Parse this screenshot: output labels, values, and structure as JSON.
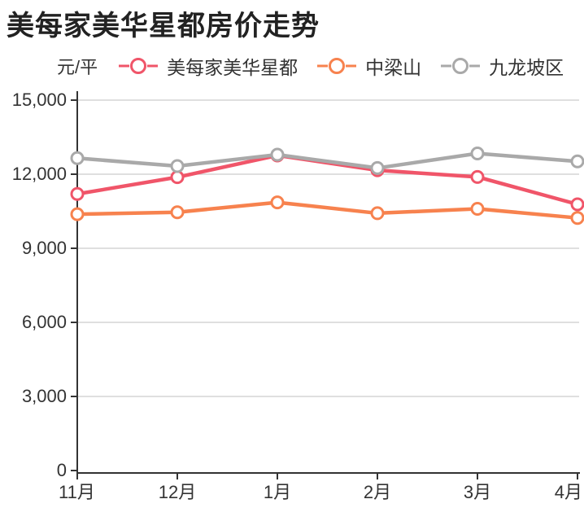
{
  "title": "美每家美华星都房价走势",
  "unit_label": "元/平",
  "colors": {
    "series_pink": "#f05569",
    "series_orange": "#f7824e",
    "series_gray": "#a9a9a9",
    "axis": "#333333",
    "grid": "#cccccc",
    "text": "#333333",
    "title_text": "#222222",
    "marker_fill": "#ffffff",
    "background": "#ffffff"
  },
  "chart_data": {
    "type": "line",
    "title": "美每家美华星都房价走势",
    "ylabel": "元/平",
    "categories": [
      "11月",
      "12月",
      "1月",
      "2月",
      "3月",
      "4月"
    ],
    "series": [
      {
        "name": "美每家美华星都",
        "color": "#f05569",
        "values": [
          11200,
          11880,
          12760,
          12160,
          11890,
          10780
        ]
      },
      {
        "name": "中梁山",
        "color": "#f7824e",
        "values": [
          10380,
          10460,
          10860,
          10420,
          10600,
          10230
        ]
      },
      {
        "name": "九龙坡区",
        "color": "#a9a9a9",
        "values": [
          12650,
          12330,
          12790,
          12250,
          12840,
          12520
        ]
      }
    ],
    "ylim": [
      0,
      15000
    ],
    "ytick_step": 3000,
    "yticks": [
      0,
      3000,
      6000,
      9000,
      12000,
      15000
    ],
    "ytick_labels": [
      "0",
      "3,000",
      "6,000",
      "9,000",
      "12,000",
      "15,000"
    ],
    "grid": true,
    "legend_position": "top"
  }
}
